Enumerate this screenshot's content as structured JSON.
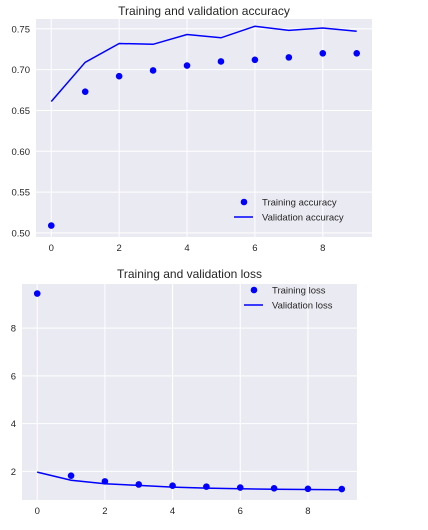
{
  "chart_data": [
    {
      "type": "line",
      "title": "Training and validation accuracy",
      "xlabel": "",
      "ylabel": "",
      "xlim": [
        -0.45,
        9.45
      ],
      "ylim": [
        0.495,
        0.762
      ],
      "xticks": [
        0,
        2,
        4,
        6,
        8
      ],
      "yticks": [
        0.5,
        0.55,
        0.6,
        0.65,
        0.7,
        0.75
      ],
      "ytick_labels": [
        "0.50",
        "0.55",
        "0.60",
        "0.65",
        "0.70",
        "0.75"
      ],
      "grid": true,
      "legend_position": "lower-right",
      "x": [
        0,
        1,
        2,
        3,
        4,
        5,
        6,
        7,
        8,
        9
      ],
      "series": [
        {
          "name": "Training accuracy",
          "style": "dots",
          "color": "#0000ff",
          "values": [
            0.509,
            0.673,
            0.692,
            0.699,
            0.705,
            0.71,
            0.712,
            0.715,
            0.72,
            0.72
          ]
        },
        {
          "name": "Validation accuracy",
          "style": "line",
          "color": "#0000ff",
          "values": [
            0.661,
            0.709,
            0.732,
            0.731,
            0.743,
            0.739,
            0.753,
            0.748,
            0.751,
            0.747
          ]
        }
      ]
    },
    {
      "type": "line",
      "title": "Training and validation loss",
      "xlabel": "",
      "ylabel": "",
      "xlim": [
        -0.45,
        9.45
      ],
      "ylim": [
        0.8,
        9.85
      ],
      "xticks": [
        0,
        2,
        4,
        6,
        8
      ],
      "yticks": [
        2,
        4,
        6,
        8
      ],
      "ytick_labels": [
        "2",
        "4",
        "6",
        "8"
      ],
      "grid": true,
      "legend_position": "upper-right",
      "x": [
        0,
        1,
        2,
        3,
        4,
        5,
        6,
        7,
        8,
        9
      ],
      "series": [
        {
          "name": "Training loss",
          "style": "dots",
          "color": "#0000ff",
          "values": [
            9.45,
            1.82,
            1.58,
            1.45,
            1.4,
            1.36,
            1.32,
            1.29,
            1.27,
            1.26
          ]
        },
        {
          "name": "Validation loss",
          "style": "line",
          "color": "#0000ff",
          "values": [
            1.97,
            1.63,
            1.48,
            1.41,
            1.34,
            1.3,
            1.27,
            1.25,
            1.24,
            1.23
          ]
        }
      ]
    }
  ]
}
